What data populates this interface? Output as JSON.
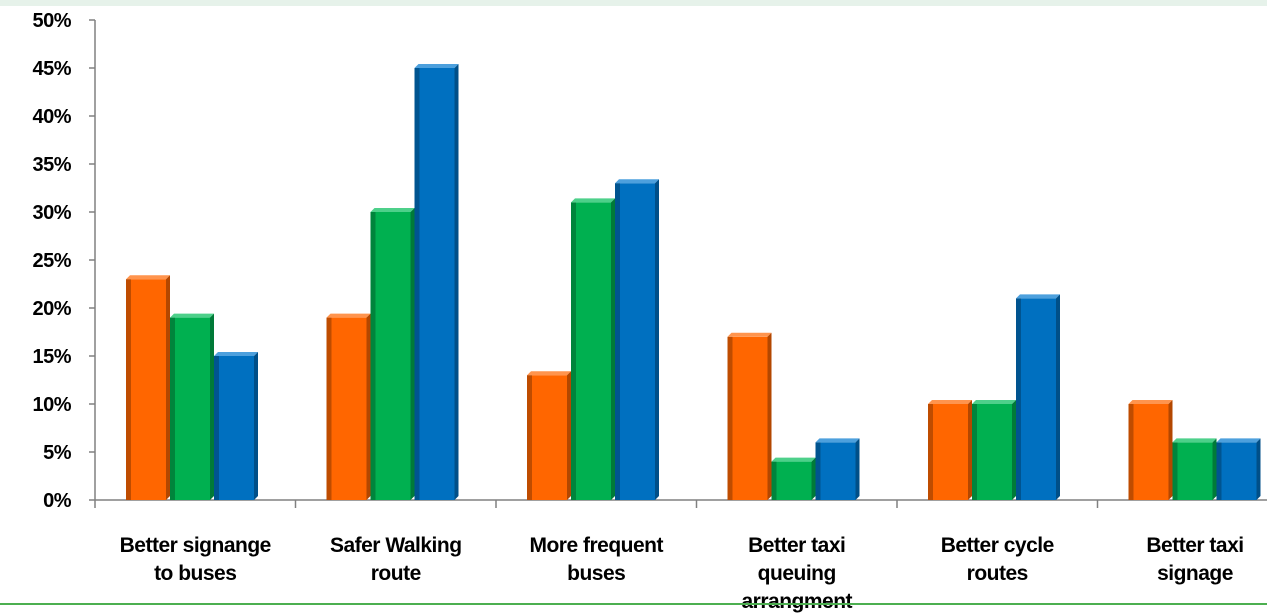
{
  "chart_data": {
    "type": "bar",
    "categories": [
      [
        "Better signange",
        "to buses"
      ],
      [
        "Safer Walking",
        "route"
      ],
      [
        "More frequent",
        "buses"
      ],
      [
        "Better taxi",
        "queuing",
        "arrangment"
      ],
      [
        "Better cycle",
        "routes"
      ],
      [
        "Better taxi",
        "signage"
      ]
    ],
    "series": [
      {
        "values": [
          23,
          19,
          13,
          17,
          10,
          10
        ]
      },
      {
        "values": [
          19,
          30,
          31,
          4,
          10,
          6
        ]
      },
      {
        "values": [
          15,
          45,
          33,
          6,
          21,
          6
        ]
      }
    ],
    "y_ticks": [
      "0%",
      "5%",
      "10%",
      "15%",
      "20%",
      "25%",
      "30%",
      "35%",
      "40%",
      "45%",
      "50%"
    ],
    "ylim": [
      0,
      50
    ],
    "y_unit": "%",
    "legend": "none",
    "grid": false
  },
  "colors": {
    "series": [
      "#ff6600",
      "#00b050",
      "#0070c0"
    ],
    "series_side": [
      "#b34700",
      "#007a38",
      "#004f88"
    ],
    "series_top": [
      "#ff944d",
      "#4dd08a",
      "#4da0dd"
    ],
    "axis": "#808080"
  }
}
